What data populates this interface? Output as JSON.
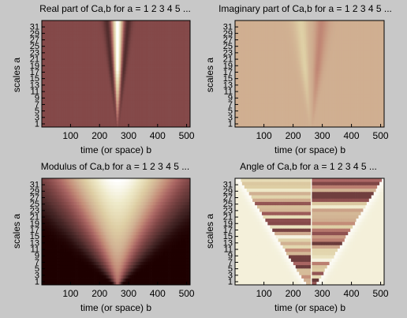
{
  "colors": {
    "background": "#c8c8c8",
    "colormap": "pink"
  },
  "chart_data": [
    {
      "type": "heatmap",
      "title": "Real part of Ca,b for a =  1 2 3 4 5 ...",
      "xlabel": "time (or space) b",
      "ylabel": "scales a",
      "xticks": [
        100,
        200,
        300,
        400,
        500
      ],
      "yticks": [
        1,
        3,
        5,
        7,
        9,
        11,
        13,
        15,
        17,
        19,
        21,
        23,
        25,
        27,
        29,
        31
      ],
      "xlim": [
        1,
        512
      ],
      "ylim": [
        1,
        32
      ],
      "pattern": "real",
      "cone_center": 262
    },
    {
      "type": "heatmap",
      "title": "Imaginary part of Ca,b for a =  1 2 3 4 5 ...",
      "xlabel": "time (or space) b",
      "ylabel": "scales a",
      "xticks": [
        100,
        200,
        300,
        400,
        500
      ],
      "yticks": [
        1,
        3,
        5,
        7,
        9,
        11,
        13,
        15,
        17,
        19,
        21,
        23,
        25,
        27,
        29,
        31
      ],
      "xlim": [
        1,
        512
      ],
      "ylim": [
        1,
        32
      ],
      "pattern": "imag",
      "cone_center": 262
    },
    {
      "type": "heatmap",
      "title": "Modulus of Ca,b for a =  1 2 3 4 5 ...",
      "xlabel": "time (or space) b",
      "ylabel": "scales a",
      "xticks": [
        100,
        200,
        300,
        400,
        500
      ],
      "yticks": [
        1,
        3,
        5,
        7,
        9,
        11,
        13,
        15,
        17,
        19,
        21,
        23,
        25,
        27,
        29,
        31
      ],
      "xlim": [
        1,
        512
      ],
      "ylim": [
        1,
        32
      ],
      "pattern": "modulus",
      "cone_center": 262
    },
    {
      "type": "heatmap",
      "title": "Angle of Ca,b for a =  1 2 3 4 5 ...",
      "xlabel": "time (or space) b",
      "ylabel": "scales a",
      "xticks": [
        100,
        200,
        300,
        400,
        500
      ],
      "yticks": [
        1,
        3,
        5,
        7,
        9,
        11,
        13,
        15,
        17,
        19,
        21,
        23,
        25,
        27,
        29,
        31
      ],
      "xlim": [
        1,
        512
      ],
      "ylim": [
        1,
        32
      ],
      "pattern": "angle",
      "cone_center": 262
    }
  ]
}
